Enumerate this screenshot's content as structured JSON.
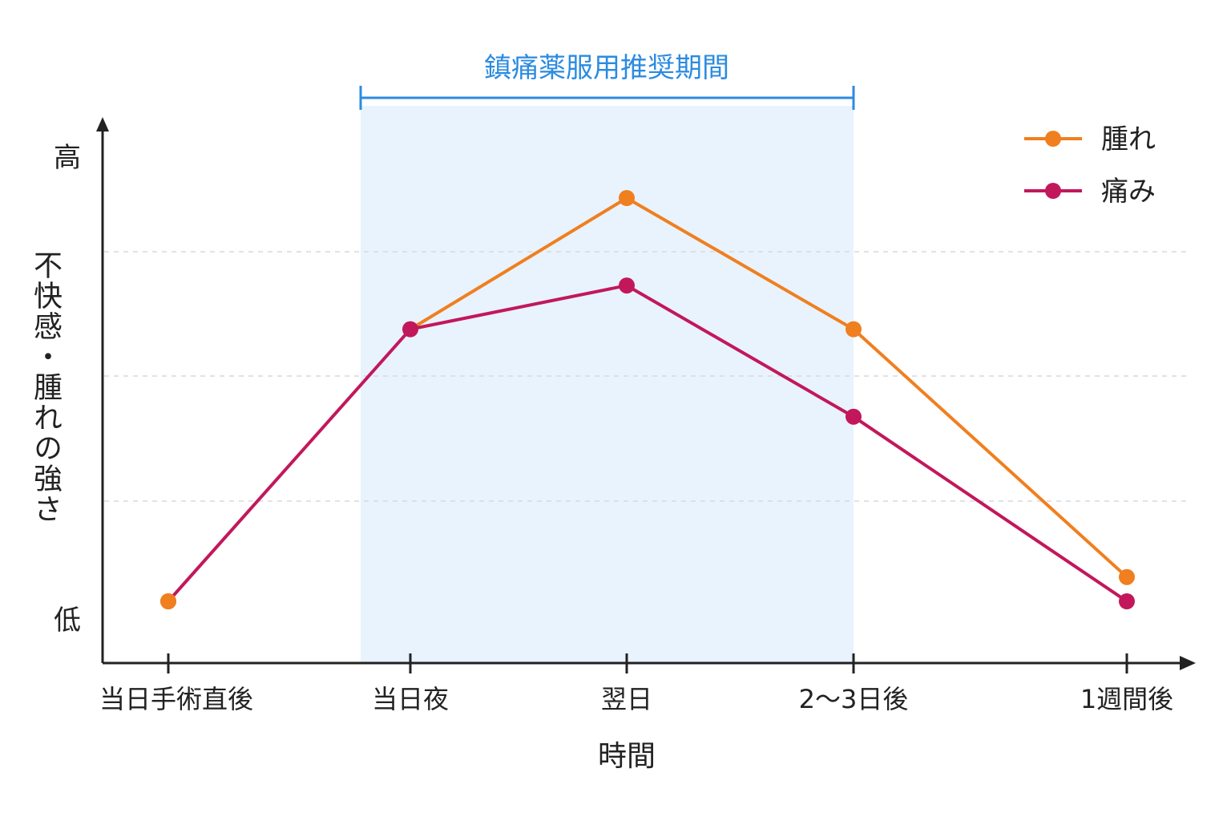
{
  "chart_data": {
    "type": "line",
    "categories": [
      "当日手術直後",
      "当日夜",
      "翌日",
      "2〜3日後",
      "1週間後"
    ],
    "series": [
      {
        "name": "腫れ",
        "color": "#f07f1f",
        "values": [
          10,
          66,
          93,
          66,
          15
        ]
      },
      {
        "name": "痛み",
        "color": "#c2185b",
        "values": [
          10,
          66,
          75,
          48,
          10
        ]
      }
    ],
    "ylim": [
      0,
      100
    ],
    "ylabel": "不快感・腫れの強さ",
    "xlabel": "時間",
    "ytick_high": "高",
    "ytick_low": "低",
    "grid": "horizontal-dashed",
    "legend": "top-right",
    "highlight": {
      "label": "鎮痛薬服用推奨期間",
      "from": "当日夜",
      "to": "2〜3日後",
      "color": "#2b8be0",
      "fill": "#e8f3fd"
    }
  }
}
